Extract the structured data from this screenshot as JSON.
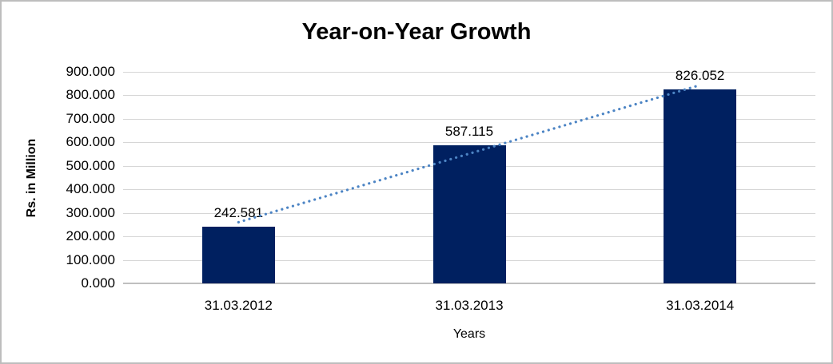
{
  "chart_data": {
    "type": "bar",
    "title": "Year-on-Year Growth",
    "xlabel": "Years",
    "ylabel": "Rs. in Million",
    "categories": [
      "31.03.2012",
      "31.03.2013",
      "31.03.2014"
    ],
    "values": [
      242.581,
      587.115,
      826.052
    ],
    "value_labels": [
      "242.581",
      "587.115",
      "826.052"
    ],
    "ylim": [
      0,
      900
    ],
    "ytick_step": 100,
    "ytick_labels": [
      "0.000",
      "100.000",
      "200.000",
      "300.000",
      "400.000",
      "500.000",
      "600.000",
      "700.000",
      "800.000",
      "900.000"
    ],
    "grid": true,
    "legend": false,
    "bar_color": "#002060",
    "gridline_color": "#d6d6d6",
    "trendline": {
      "type": "linear",
      "style": "dotted",
      "color": "#4c84c4"
    }
  }
}
